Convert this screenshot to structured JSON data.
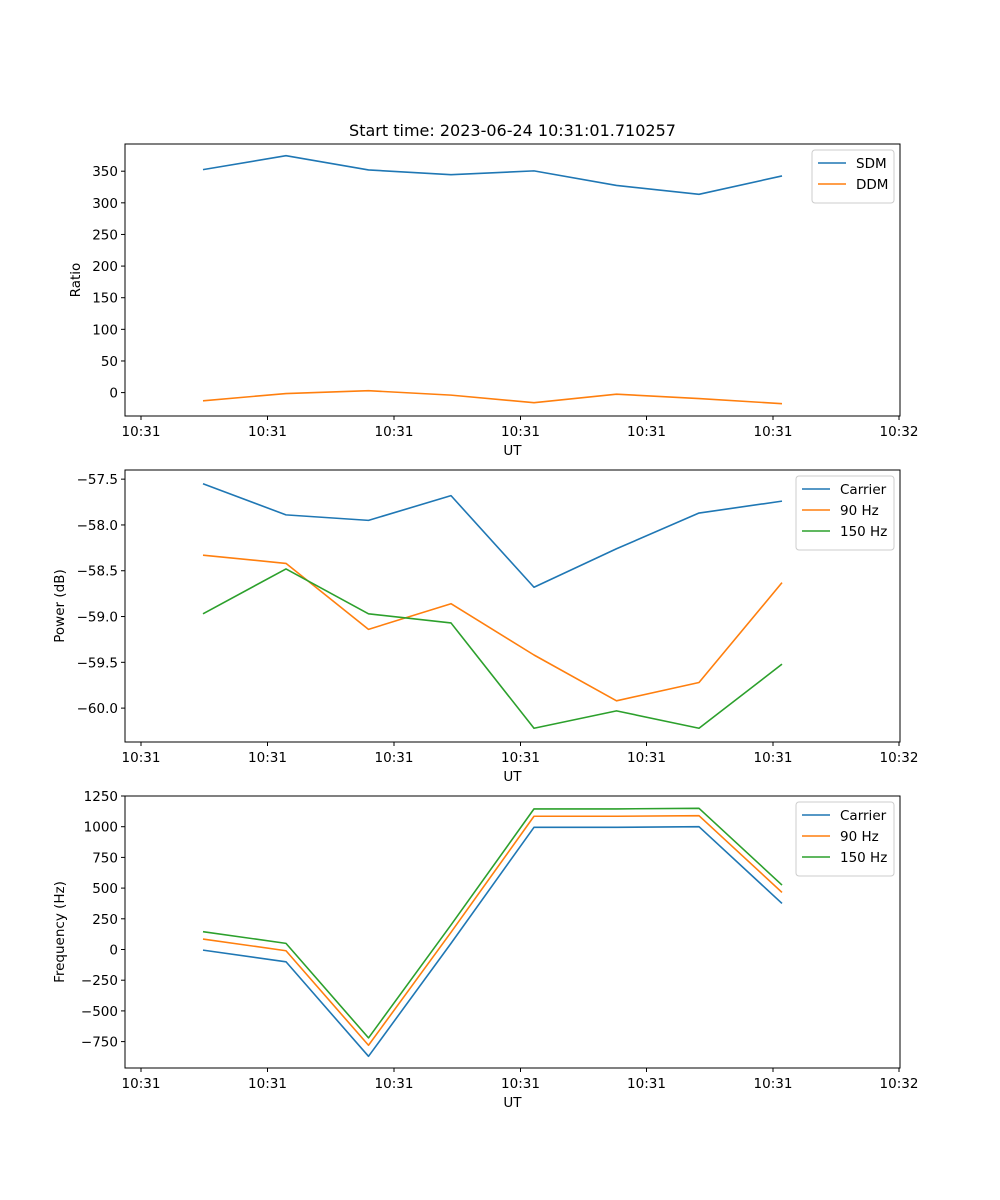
{
  "title": "Start time: 2023-06-24 10:31:01.710257",
  "colors": {
    "blue": "#1f77b4",
    "orange": "#ff7f0e",
    "green": "#2ca02c"
  },
  "chart_data": [
    {
      "type": "line",
      "xlabel": "UT",
      "ylabel": "Ratio",
      "x_tick_labels": [
        "10:31",
        "10:31",
        "10:31",
        "10:31",
        "10:31",
        "10:31",
        "10:32"
      ],
      "y_ticks": [
        0,
        50,
        100,
        150,
        200,
        250,
        300,
        350
      ],
      "y_tick_labels": [
        "0",
        "50",
        "100",
        "150",
        "200",
        "250",
        "300",
        "350"
      ],
      "ylim": [
        -37,
        393
      ],
      "legend_position": "upper right",
      "series": [
        {
          "name": "SDM",
          "color": "#1f77b4",
          "values": [
            352.5,
            374.5,
            352,
            344.5,
            350.5,
            327.5,
            313.5,
            342.5
          ]
        },
        {
          "name": "DDM",
          "color": "#ff7f0e",
          "values": [
            -13,
            -1.5,
            3,
            -4,
            -16,
            -2.5,
            -9.5,
            -17.5
          ]
        }
      ]
    },
    {
      "type": "line",
      "xlabel": "UT",
      "ylabel": "Power (dB)",
      "x_tick_labels": [
        "10:31",
        "10:31",
        "10:31",
        "10:31",
        "10:31",
        "10:31",
        "10:32"
      ],
      "y_ticks": [
        -60.0,
        -59.5,
        -59.0,
        -58.5,
        -58.0,
        -57.5
      ],
      "y_tick_labels": [
        "−60.0",
        "−59.5",
        "−59.0",
        "−58.5",
        "−58.0",
        "−57.5"
      ],
      "ylim": [
        -60.37,
        -57.4
      ],
      "legend_position": "upper right",
      "series": [
        {
          "name": "Carrier",
          "color": "#1f77b4",
          "values": [
            -57.55,
            -57.89,
            -57.95,
            -57.68,
            -58.68,
            -58.26,
            -57.87,
            -57.74
          ]
        },
        {
          "name": "90 Hz",
          "color": "#ff7f0e",
          "values": [
            -58.33,
            -58.42,
            -59.14,
            -58.86,
            -59.42,
            -59.92,
            -59.72,
            -58.63
          ]
        },
        {
          "name": "150 Hz",
          "color": "#2ca02c",
          "values": [
            -58.97,
            -58.48,
            -58.97,
            -59.07,
            -60.22,
            -60.03,
            -60.22,
            -59.52
          ]
        }
      ]
    },
    {
      "type": "line",
      "xlabel": "UT",
      "ylabel": "Frequency (Hz)",
      "x_tick_labels": [
        "10:31",
        "10:31",
        "10:31",
        "10:31",
        "10:31",
        "10:31",
        "10:32"
      ],
      "y_ticks": [
        -750,
        -500,
        -250,
        0,
        250,
        500,
        750,
        1000,
        1250
      ],
      "y_tick_labels": [
        "−750",
        "−500",
        "−250",
        "0",
        "250",
        "500",
        "750",
        "1000",
        "1250"
      ],
      "ylim": [
        -965,
        1250
      ],
      "legend_position": "upper right",
      "series": [
        {
          "name": "Carrier",
          "color": "#1f77b4",
          "values": [
            -5,
            -100,
            -870,
            50,
            995,
            995,
            1000,
            375
          ]
        },
        {
          "name": "90 Hz",
          "color": "#ff7f0e",
          "values": [
            85,
            -10,
            -780,
            140,
            1085,
            1085,
            1090,
            465
          ]
        },
        {
          "name": "150 Hz",
          "color": "#2ca02c",
          "values": [
            145,
            50,
            -720,
            200,
            1145,
            1145,
            1150,
            525
          ]
        }
      ]
    }
  ]
}
